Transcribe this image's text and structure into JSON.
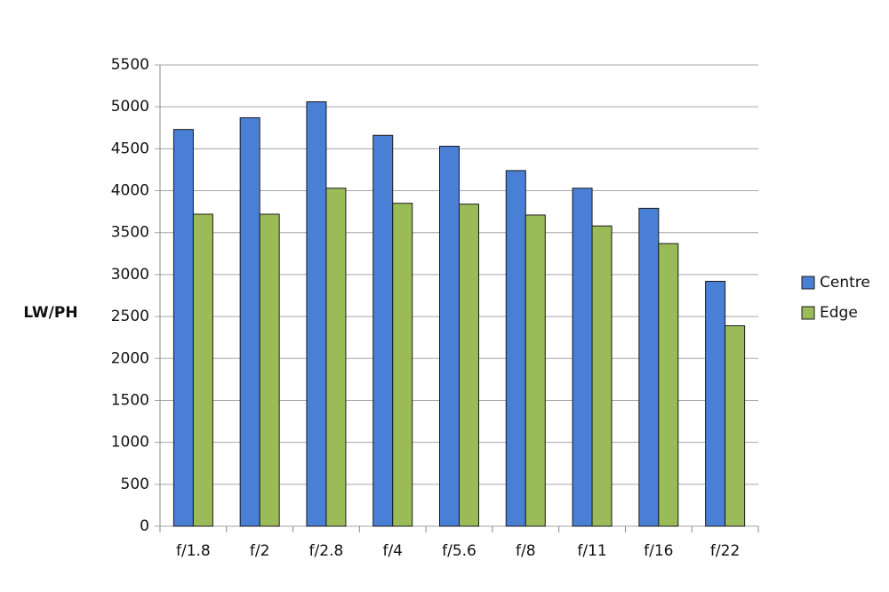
{
  "chart_data": {
    "type": "bar",
    "y_label": "LW/PH",
    "categories": [
      "f/1.8",
      "f/2",
      "f/2.8",
      "f/4",
      "f/5.6",
      "f/8",
      "f/11",
      "f/16",
      "f/22"
    ],
    "series": [
      {
        "name": "Centre",
        "color": "#4a7fd6",
        "values": [
          4730,
          4870,
          5060,
          4660,
          4530,
          4240,
          4030,
          3790,
          2920
        ]
      },
      {
        "name": "Edge",
        "color": "#9bbb59",
        "values": [
          3720,
          3720,
          4030,
          3850,
          3840,
          3710,
          3580,
          3370,
          2390
        ]
      }
    ],
    "ylim": [
      0,
      5500
    ],
    "yticks": [
      0,
      500,
      1000,
      1500,
      2000,
      2500,
      3000,
      3500,
      4000,
      4500,
      5000,
      5500
    ],
    "grid": true,
    "legend": "right"
  }
}
